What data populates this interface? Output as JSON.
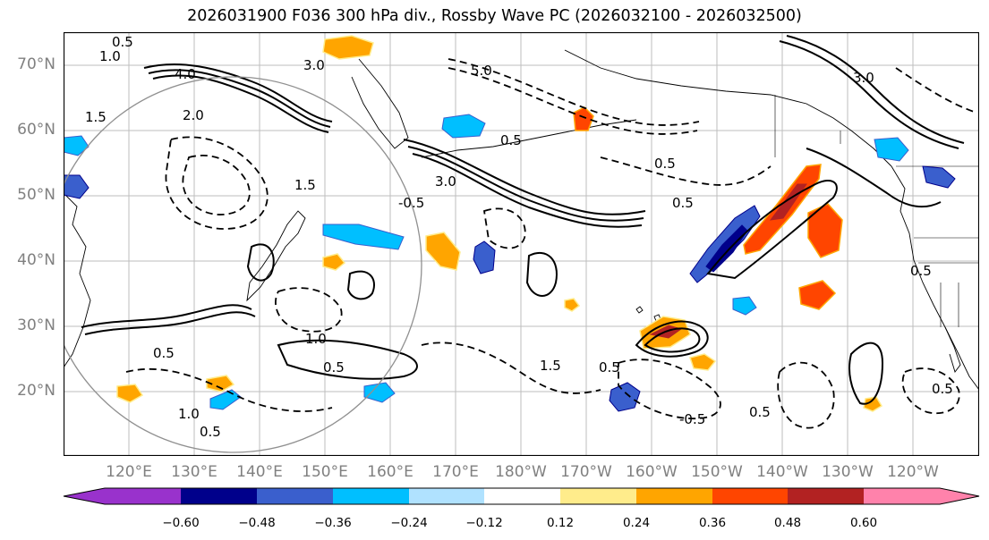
{
  "title": "2026031900 F036 300 hPa div., Rossby Wave PC (2026032100 - 2026032500)",
  "latitude_labels": [
    "70°N",
    "60°N",
    "50°N",
    "40°N",
    "30°N",
    "20°N"
  ],
  "longitude_labels": [
    "120°E",
    "130°E",
    "140°E",
    "150°E",
    "160°E",
    "170°E",
    "180°W",
    "170°W",
    "160°W",
    "150°W",
    "140°W",
    "130°W",
    "120°W"
  ],
  "colorbar": {
    "ticks": [
      "−0.60",
      "−0.48",
      "−0.36",
      "−0.24",
      "−0.12",
      "0.12",
      "0.24",
      "0.36",
      "0.48",
      "0.60"
    ],
    "colors": [
      "#9932cc",
      "#00008b",
      "#3a5fcd",
      "#00bfff",
      "#b0e2ff",
      "#ffffff",
      "#ffec8b",
      "#ffa500",
      "#ff4500",
      "#b22222",
      "#ff82ab"
    ]
  },
  "contour_labels": {
    "a": "0.5",
    "b": "1.0",
    "c": "4.0",
    "d": "3.0",
    "e": "5.0",
    "f": "1.5",
    "g": "2.0",
    "h": "-0.5",
    "i": "0.5",
    "j": "1.0",
    "k": "0.5",
    "l": "1.0",
    "m": "0.5",
    "n": "0.5",
    "o": "0.5",
    "p": "-0.5",
    "q": "0.5",
    "r": "0.5",
    "s": "1.5",
    "t": "3.0",
    "u": "0.5",
    "v": "3.0",
    "w": "1.5",
    "x": "0.5",
    "y": "0.5"
  }
}
